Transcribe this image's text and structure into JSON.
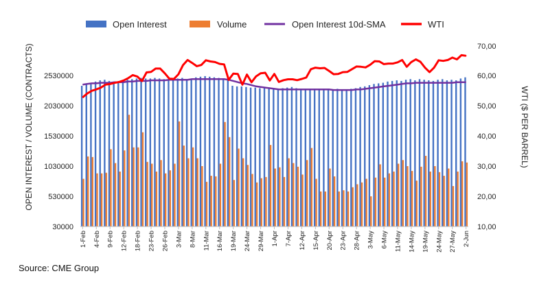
{
  "chart_data": {
    "type": "bar",
    "title": "",
    "source": "Source: CME Group",
    "legend": {
      "placement": "top",
      "entries": [
        {
          "label": "Open Interest",
          "kind": "bar",
          "color": "#4472C4"
        },
        {
          "label": "Volume",
          "kind": "bar",
          "color": "#ED7D31"
        },
        {
          "label": "Open Interest 10d-SMA",
          "kind": "line",
          "color": "#7030A0"
        },
        {
          "label": "WTI",
          "kind": "line",
          "color": "#FF0000"
        }
      ]
    },
    "ylabel_left": "OPEN INTEREST / VOLUME (CONTRACTS)",
    "ylabel_right": "WTI ($ PER BARREL)",
    "yticks_left": [
      "30000",
      "530000",
      "1030000",
      "1530000",
      "2030000",
      "2530000"
    ],
    "ylim_left": [
      30000,
      2780000
    ],
    "yticks_right": [
      "10,00",
      "20,00",
      "30,00",
      "40,00",
      "50,00",
      "60,00",
      "70,00"
    ],
    "ylim_right": [
      10,
      70
    ],
    "xtick_labels": [
      "1-Feb",
      "4-Feb",
      "9-Feb",
      "12-Feb",
      "18-Feb",
      "23-Feb",
      "26-Feb",
      "3-Mar",
      "8-Mar",
      "11-Mar",
      "16-Mar",
      "19-Mar",
      "24-Mar",
      "29-Mar",
      "1-Apr",
      "7-Apr",
      "12-Apr",
      "15-Apr",
      "20-Apr",
      "23-Apr",
      "28-Apr",
      "3-May",
      "6-May",
      "11-May",
      "14-May",
      "19-May",
      "24-May",
      "27-May",
      "2-Jun"
    ],
    "x": [
      "1-Feb",
      "2-Feb",
      "3-Feb",
      "4-Feb",
      "5-Feb",
      "8-Feb",
      "9-Feb",
      "10-Feb",
      "11-Feb",
      "12-Feb",
      "16-Feb",
      "17-Feb",
      "18-Feb",
      "19-Feb",
      "22-Feb",
      "23-Feb",
      "24-Feb",
      "25-Feb",
      "26-Feb",
      "1-Mar",
      "2-Mar",
      "3-Mar",
      "4-Mar",
      "5-Mar",
      "8-Mar",
      "9-Mar",
      "10-Mar",
      "11-Mar",
      "12-Mar",
      "15-Mar",
      "16-Mar",
      "17-Mar",
      "18-Mar",
      "19-Mar",
      "22-Mar",
      "23-Mar",
      "24-Mar",
      "25-Mar",
      "26-Mar",
      "29-Mar",
      "30-Mar",
      "31-Mar",
      "1-Apr",
      "5-Apr",
      "6-Apr",
      "7-Apr",
      "8-Apr",
      "9-Apr",
      "12-Apr",
      "13-Apr",
      "14-Apr",
      "15-Apr",
      "16-Apr",
      "19-Apr",
      "20-Apr",
      "21-Apr",
      "22-Apr",
      "23-Apr",
      "26-Apr",
      "27-Apr",
      "28-Apr",
      "29-Apr",
      "30-Apr",
      "3-May",
      "4-May",
      "5-May",
      "6-May",
      "7-May",
      "10-May",
      "11-May",
      "12-May",
      "13-May",
      "14-May",
      "17-May",
      "18-May",
      "19-May",
      "20-May",
      "21-May",
      "24-May",
      "25-May",
      "26-May",
      "27-May",
      "28-May",
      "1-Jun",
      "2-Jun"
    ],
    "series": [
      {
        "name": "Open Interest",
        "type": "bar",
        "axis": "left",
        "color": "#4472C4",
        "values": [
          2360000,
          2380000,
          2400000,
          2430000,
          2450000,
          2460000,
          2440000,
          2430000,
          2420000,
          2440000,
          2460000,
          2470000,
          2480000,
          2490000,
          2480000,
          2480000,
          2490000,
          2480000,
          2470000,
          2470000,
          2460000,
          2480000,
          2490000,
          2470000,
          2480000,
          2500000,
          2510000,
          2520000,
          2510000,
          2500000,
          2490000,
          2480000,
          2470000,
          2360000,
          2350000,
          2350000,
          2340000,
          2330000,
          2330000,
          2320000,
          2330000,
          2330000,
          2320000,
          2300000,
          2320000,
          2330000,
          2340000,
          2320000,
          2310000,
          2300000,
          2300000,
          2290000,
          2290000,
          2300000,
          2290000,
          2300000,
          2310000,
          2300000,
          2300000,
          2310000,
          2320000,
          2340000,
          2350000,
          2370000,
          2390000,
          2400000,
          2410000,
          2430000,
          2440000,
          2450000,
          2440000,
          2460000,
          2470000,
          2450000,
          2470000,
          2460000,
          2450000,
          2440000,
          2460000,
          2470000,
          2450000,
          2460000,
          2450000,
          2480000,
          2500000
        ]
      },
      {
        "name": "Volume",
        "type": "bar",
        "axis": "left",
        "color": "#ED7D31",
        "values": [
          820000,
          1190000,
          1180000,
          910000,
          910000,
          920000,
          1310000,
          1080000,
          940000,
          1290000,
          1880000,
          1340000,
          1340000,
          1590000,
          1100000,
          1070000,
          940000,
          1130000,
          910000,
          960000,
          1070000,
          1770000,
          1370000,
          1160000,
          1340000,
          1160000,
          1030000,
          770000,
          870000,
          860000,
          1070000,
          1760000,
          1510000,
          800000,
          1320000,
          1160000,
          1050000,
          900000,
          760000,
          830000,
          850000,
          1380000,
          990000,
          1010000,
          850000,
          1160000,
          1080000,
          1020000,
          890000,
          1130000,
          1330000,
          820000,
          610000,
          610000,
          990000,
          860000,
          610000,
          630000,
          610000,
          680000,
          730000,
          760000,
          820000,
          530000,
          840000,
          1060000,
          840000,
          910000,
          940000,
          1070000,
          1130000,
          1030000,
          950000,
          790000,
          1020000,
          1200000,
          940000,
          1030000,
          930000,
          870000,
          990000,
          700000,
          940000,
          1110000,
          1090000
        ]
      },
      {
        "name": "Open Interest 10d-SMA",
        "type": "line",
        "axis": "left",
        "color": "#7030A0",
        "values": [
          2380000,
          2390000,
          2400000,
          2400000,
          2410000,
          2410000,
          2410000,
          2420000,
          2420000,
          2420000,
          2430000,
          2430000,
          2440000,
          2440000,
          2440000,
          2450000,
          2450000,
          2450000,
          2450000,
          2460000,
          2460000,
          2460000,
          2460000,
          2460000,
          2470000,
          2470000,
          2470000,
          2470000,
          2470000,
          2470000,
          2470000,
          2470000,
          2460000,
          2440000,
          2420000,
          2400000,
          2390000,
          2370000,
          2350000,
          2340000,
          2330000,
          2320000,
          2310000,
          2300000,
          2300000,
          2300000,
          2300000,
          2300000,
          2300000,
          2300000,
          2300000,
          2300000,
          2300000,
          2300000,
          2300000,
          2290000,
          2290000,
          2290000,
          2290000,
          2290000,
          2300000,
          2300000,
          2310000,
          2320000,
          2330000,
          2340000,
          2350000,
          2360000,
          2370000,
          2380000,
          2390000,
          2400000,
          2400000,
          2410000,
          2410000,
          2410000,
          2410000,
          2410000,
          2410000,
          2410000,
          2410000,
          2410000,
          2420000,
          2420000,
          2420000
        ]
      },
      {
        "name": "WTI",
        "type": "line",
        "axis": "right",
        "color": "#FF0000",
        "values": [
          53.5,
          54.8,
          55.7,
          56.2,
          56.8,
          57.8,
          58.0,
          58.4,
          58.7,
          59.2,
          60.0,
          61.0,
          60.5,
          59.0,
          61.9,
          62.1,
          63.2,
          63.2,
          61.6,
          59.8,
          59.7,
          61.3,
          64.4,
          66.1,
          65.1,
          64.0,
          64.4,
          66.0,
          65.6,
          65.4,
          64.8,
          64.6,
          59.4,
          61.5,
          61.4,
          57.8,
          61.2,
          58.6,
          60.6,
          61.6,
          61.8,
          59.2,
          61.4,
          58.7,
          59.3,
          59.6,
          59.6,
          59.3,
          59.7,
          60.2,
          63.0,
          63.5,
          63.3,
          63.4,
          62.4,
          61.3,
          61.4,
          62.0,
          62.1,
          63.0,
          63.9,
          63.8,
          63.6,
          64.5,
          65.7,
          65.6,
          64.7,
          64.9,
          64.9,
          65.3,
          66.1,
          63.8,
          65.4,
          66.3,
          65.5,
          63.5,
          62.0,
          63.5,
          66.0,
          65.8,
          66.1,
          66.9,
          66.3,
          67.7,
          67.5
        ]
      }
    ]
  }
}
